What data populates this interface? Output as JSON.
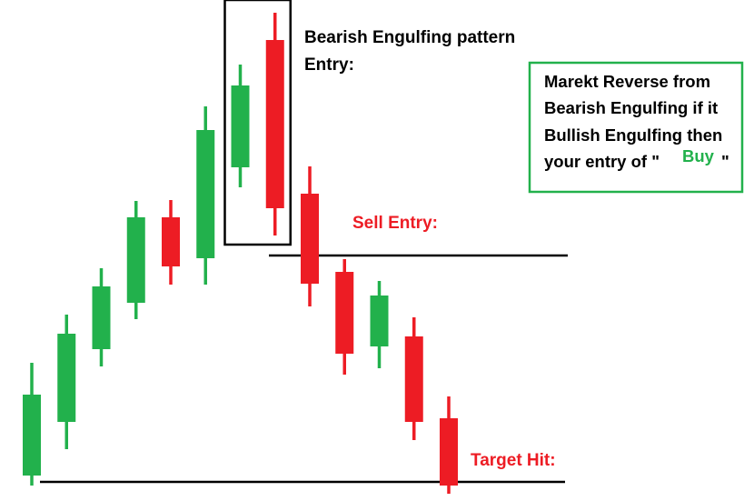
{
  "chart_data": {
    "type": "candlestick",
    "title": "",
    "xlabel": "",
    "ylabel": "",
    "grid": false,
    "bull_color": "#22b14c",
    "bear_color": "#ed1c24",
    "candles": [
      {
        "open": 11,
        "close": 100,
        "high": 135,
        "low": 0,
        "direction": "bull"
      },
      {
        "open": 70,
        "close": 167,
        "high": 188,
        "low": 40,
        "direction": "bull"
      },
      {
        "open": 150,
        "close": 219,
        "high": 239,
        "low": 131,
        "direction": "bull"
      },
      {
        "open": 201,
        "close": 295,
        "high": 313,
        "low": 183,
        "direction": "bull"
      },
      {
        "open": 295,
        "close": 241,
        "high": 314,
        "low": 221,
        "direction": "bear"
      },
      {
        "open": 250,
        "close": 391,
        "high": 417,
        "low": 221,
        "direction": "bull"
      },
      {
        "open": 350,
        "close": 440,
        "high": 463,
        "low": 328,
        "direction": "bull"
      },
      {
        "open": 490,
        "close": 305,
        "high": 520,
        "low": 275,
        "direction": "bear"
      },
      {
        "open": 321,
        "close": 222,
        "high": 351,
        "low": 197,
        "direction": "bear"
      },
      {
        "open": 235,
        "close": 145,
        "high": 249,
        "low": 122,
        "direction": "bear"
      },
      {
        "open": 153,
        "close": 209,
        "high": 225,
        "low": 129,
        "direction": "bull"
      },
      {
        "open": 164,
        "close": 70,
        "high": 185,
        "low": 50,
        "direction": "bear"
      },
      {
        "open": 74,
        "close": 0,
        "high": 98,
        "low": -9,
        "direction": "bear"
      }
    ],
    "levels": [
      {
        "name": "sell_entry",
        "value": 253
      },
      {
        "name": "target",
        "value": 4
      }
    ],
    "annotations": {
      "pattern_title": "Bearish Engulfing pattern",
      "pattern_subtitle": "Entry:",
      "sell_entry": "Sell Entry:",
      "target_hit": "Target Hit:",
      "note": {
        "line1": "Marekt Reverse from",
        "line2": "Bearish Engulfing if it",
        "line3": "Bullish Engulfing then",
        "line4_prefix": "your entry of \"",
        "line4_highlight": "Buy",
        "line4_suffix": "\""
      }
    },
    "highlight_box_candles": [
      6,
      7
    ],
    "highlight_color": "#000000",
    "note_border_color": "#22b14c",
    "buy_color": "#22b14c",
    "entry_color": "#ed1c24"
  }
}
